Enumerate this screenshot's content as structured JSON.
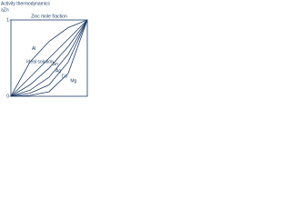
{
  "chart_data": {
    "type": "line",
    "title": "Activity thermodynamics",
    "y_label": "aZn",
    "x_label": "Zinc mole fraction",
    "x": [
      0,
      0.25,
      0.5,
      0.75,
      1
    ],
    "series": [
      {
        "name": "Al",
        "color": "#1f3d66",
        "values": [
          0,
          0.45,
          0.72,
          0.9,
          1
        ]
      },
      {
        "name": "Ideal solution",
        "color": "#1f3d66",
        "values": [
          0,
          0.25,
          0.5,
          0.75,
          1
        ]
      },
      {
        "name": "Sn",
        "color": "#1f3d66",
        "values": [
          0,
          0.15,
          0.37,
          0.65,
          1
        ]
      },
      {
        "name": "Ag",
        "color": "#1f3d66",
        "values": [
          0,
          0.08,
          0.25,
          0.55,
          1
        ]
      },
      {
        "name": "Cu",
        "color": "#1f3d66",
        "values": [
          0,
          0.04,
          0.15,
          0.45,
          1
        ]
      },
      {
        "name": "Mg",
        "color": "#1f3d66",
        "values": [
          0,
          0.01,
          0.06,
          0.3,
          1
        ]
      }
    ],
    "xlim": [
      0,
      1
    ],
    "ylim": [
      0,
      1
    ],
    "xticks": [
      0,
      1
    ],
    "yticks": [
      0,
      1
    ]
  }
}
